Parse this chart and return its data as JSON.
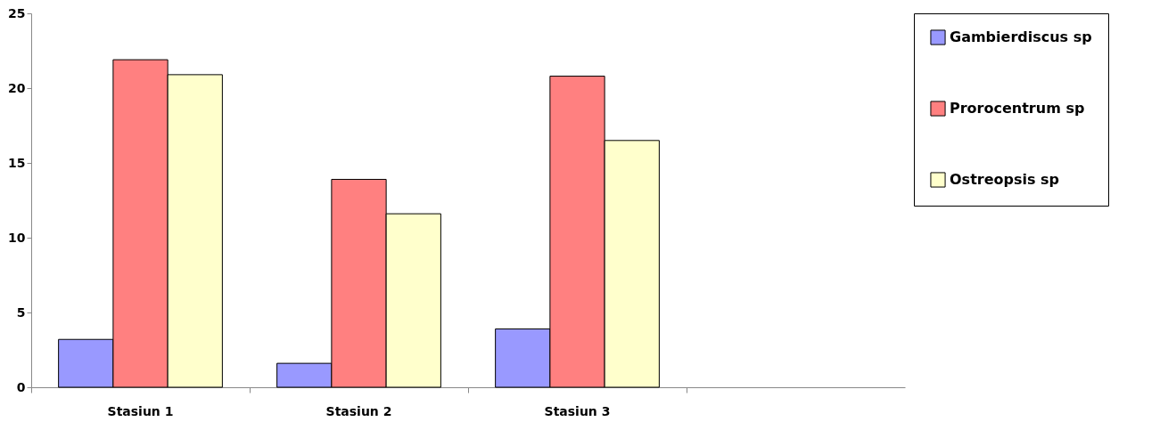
{
  "chart_data": {
    "type": "bar",
    "categories": [
      "Stasiun 1",
      "Stasiun 2",
      "Stasiun 3",
      null
    ],
    "series": [
      {
        "name": "Gambierdiscus sp",
        "color": "#9999ff",
        "values": [
          3.2,
          1.6,
          3.9,
          null
        ]
      },
      {
        "name": "Prorocentrum sp",
        "color": "#ff8080",
        "values": [
          21.9,
          13.9,
          20.8,
          null
        ]
      },
      {
        "name": "Ostreopsis sp",
        "color": "#ffffcc",
        "values": [
          20.9,
          11.6,
          16.5,
          null
        ]
      }
    ],
    "ylim": [
      0,
      25
    ],
    "yticks": [
      0,
      5,
      10,
      15,
      20,
      25
    ],
    "grid": false,
    "legend": "right"
  }
}
